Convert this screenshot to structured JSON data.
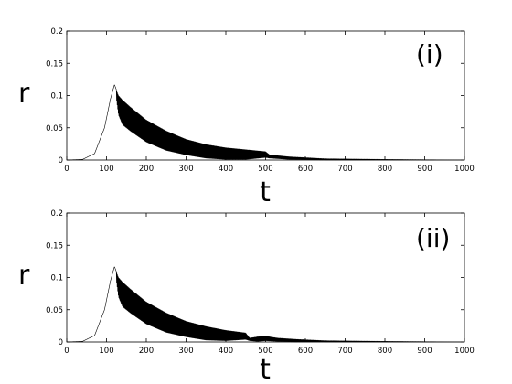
{
  "figure": {
    "background": "#ffffff",
    "line_color": "#000000"
  },
  "chart_data": [
    {
      "type": "line",
      "panel_label": "(i)",
      "xlabel": "t",
      "ylabel": "r",
      "xlim": [
        0,
        1000
      ],
      "ylim": [
        0,
        0.2
      ],
      "xticks": [
        0,
        100,
        200,
        300,
        400,
        500,
        600,
        700,
        800,
        900,
        1000
      ],
      "yticks": [
        0,
        0.05,
        0.1,
        0.15,
        0.2
      ],
      "grid": false,
      "series": [
        {
          "envelope": [
            {
              "t": 0,
              "lo": 0.0,
              "hi": 0.0
            },
            {
              "t": 40,
              "lo": 0.001,
              "hi": 0.001
            },
            {
              "t": 70,
              "lo": 0.01,
              "hi": 0.01
            },
            {
              "t": 95,
              "lo": 0.05,
              "hi": 0.05
            },
            {
              "t": 110,
              "lo": 0.095,
              "hi": 0.095
            },
            {
              "t": 120,
              "lo": 0.117,
              "hi": 0.117
            },
            {
              "t": 130,
              "lo": 0.07,
              "hi": 0.1
            },
            {
              "t": 140,
              "lo": 0.055,
              "hi": 0.093
            },
            {
              "t": 160,
              "lo": 0.045,
              "hi": 0.082
            },
            {
              "t": 200,
              "lo": 0.028,
              "hi": 0.062
            },
            {
              "t": 250,
              "lo": 0.015,
              "hi": 0.045
            },
            {
              "t": 300,
              "lo": 0.008,
              "hi": 0.032
            },
            {
              "t": 350,
              "lo": 0.003,
              "hi": 0.024
            },
            {
              "t": 400,
              "lo": 0.001,
              "hi": 0.019
            },
            {
              "t": 450,
              "lo": 0.001,
              "hi": 0.016
            },
            {
              "t": 500,
              "lo": 0.004,
              "hi": 0.013
            },
            {
              "t": 510,
              "lo": 0.003,
              "hi": 0.008
            },
            {
              "t": 560,
              "lo": 0.001,
              "hi": 0.005
            },
            {
              "t": 650,
              "lo": 0.0,
              "hi": 0.002
            },
            {
              "t": 800,
              "lo": 0.0,
              "hi": 0.001
            },
            {
              "t": 1000,
              "lo": 0.0,
              "hi": 0.0
            }
          ]
        }
      ]
    },
    {
      "type": "line",
      "panel_label": "(ii)",
      "xlabel": "t",
      "ylabel": "r",
      "xlim": [
        0,
        1000
      ],
      "ylim": [
        0,
        0.2
      ],
      "xticks": [
        0,
        100,
        200,
        300,
        400,
        500,
        600,
        700,
        800,
        900,
        1000
      ],
      "yticks": [
        0,
        0.05,
        0.1,
        0.15,
        0.2
      ],
      "grid": false,
      "series": [
        {
          "envelope": [
            {
              "t": 0,
              "lo": 0.0,
              "hi": 0.0
            },
            {
              "t": 40,
              "lo": 0.001,
              "hi": 0.001
            },
            {
              "t": 70,
              "lo": 0.01,
              "hi": 0.01
            },
            {
              "t": 95,
              "lo": 0.05,
              "hi": 0.05
            },
            {
              "t": 110,
              "lo": 0.095,
              "hi": 0.095
            },
            {
              "t": 120,
              "lo": 0.117,
              "hi": 0.117
            },
            {
              "t": 130,
              "lo": 0.07,
              "hi": 0.1
            },
            {
              "t": 140,
              "lo": 0.055,
              "hi": 0.093
            },
            {
              "t": 160,
              "lo": 0.045,
              "hi": 0.082
            },
            {
              "t": 200,
              "lo": 0.028,
              "hi": 0.062
            },
            {
              "t": 250,
              "lo": 0.015,
              "hi": 0.045
            },
            {
              "t": 300,
              "lo": 0.008,
              "hi": 0.032
            },
            {
              "t": 350,
              "lo": 0.003,
              "hi": 0.024
            },
            {
              "t": 400,
              "lo": 0.002,
              "hi": 0.018
            },
            {
              "t": 450,
              "lo": 0.004,
              "hi": 0.014
            },
            {
              "t": 460,
              "lo": 0.002,
              "hi": 0.006
            },
            {
              "t": 480,
              "lo": 0.001,
              "hi": 0.008
            },
            {
              "t": 500,
              "lo": 0.002,
              "hi": 0.009
            },
            {
              "t": 530,
              "lo": 0.001,
              "hi": 0.006
            },
            {
              "t": 580,
              "lo": 0.0,
              "hi": 0.004
            },
            {
              "t": 650,
              "lo": 0.0,
              "hi": 0.002
            },
            {
              "t": 800,
              "lo": 0.0,
              "hi": 0.001
            },
            {
              "t": 1000,
              "lo": 0.0,
              "hi": 0.0
            }
          ]
        }
      ]
    }
  ]
}
